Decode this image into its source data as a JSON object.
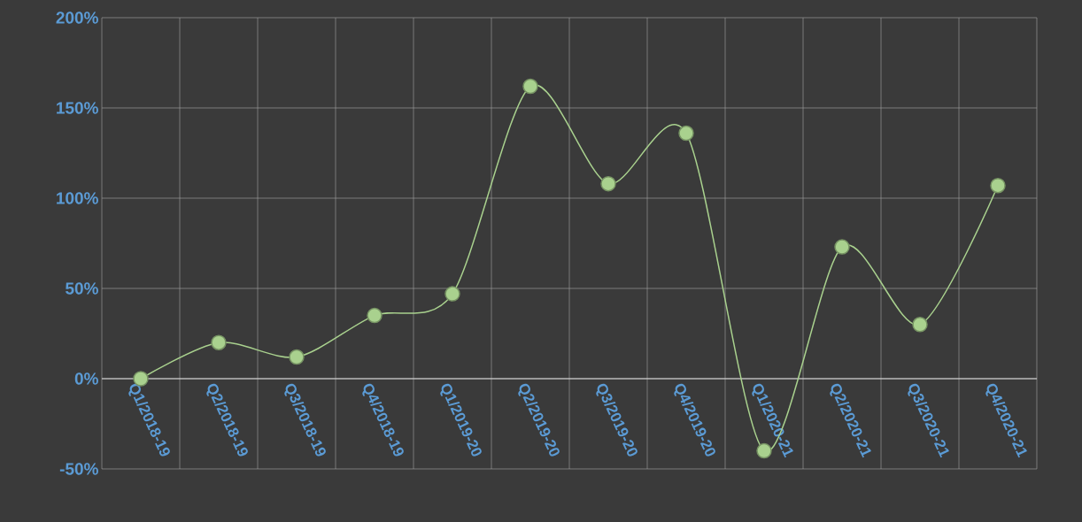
{
  "chart_data": {
    "type": "line",
    "categories": [
      "Q1/2018-19",
      "Q2/2018-19",
      "Q3/2018-19",
      "Q4/2018-19",
      "Q1/2019-20",
      "Q2/2019-20",
      "Q3/2019-20",
      "Q4/2019-20",
      "Q1/2020-21",
      "Q2/2020-21",
      "Q3/2020-21",
      "Q4/2020-21"
    ],
    "series": [
      {
        "color": "#a9d18e",
        "values": [
          0,
          20,
          12,
          35,
          47,
          162,
          108,
          136,
          -40,
          73,
          30,
          107
        ]
      }
    ],
    "ylim": [
      -50,
      200
    ],
    "yticks": [
      {
        "value": -50,
        "label": "-50%"
      },
      {
        "value": 0,
        "label": "0%"
      },
      {
        "value": 50,
        "label": "50%"
      },
      {
        "value": 100,
        "label": "100%"
      },
      {
        "value": 150,
        "label": "150%"
      },
      {
        "value": 200,
        "label": "200%"
      }
    ],
    "grid": true,
    "marker": "circle",
    "line_style": "solid"
  }
}
